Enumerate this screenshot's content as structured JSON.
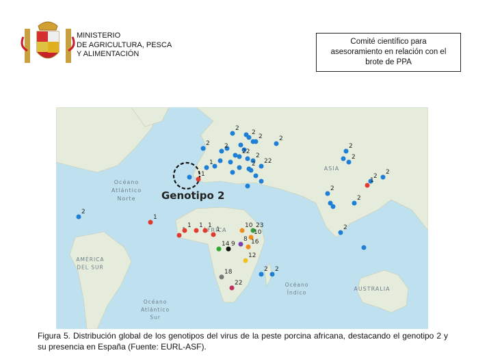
{
  "header": {
    "ministry": [
      "MINISTERIO",
      "DE AGRICULTURA, PESCA",
      "Y ALIMENTACIÓN"
    ],
    "committee": [
      "Comité científico para",
      "asesoramiento en relación con el",
      "brote de PPA"
    ]
  },
  "map": {
    "regions": [
      {
        "lines": [
          "Océano",
          "Atlántico",
          "Norte"
        ]
      },
      {
        "lines": [
          "ASIA"
        ]
      },
      {
        "lines": [
          "ÁFRICA"
        ]
      },
      {
        "lines": [
          "AMÉRICA",
          "DEL SUR"
        ]
      },
      {
        "lines": [
          "Océano",
          "Índico"
        ]
      },
      {
        "lines": [
          "AUSTRALIA"
        ]
      },
      {
        "lines": [
          "Océano",
          "Atlántico",
          "Sur"
        ]
      }
    ],
    "highlight": "Genotipo 2",
    "markers": [
      {
        "label": "2",
        "color": "#1e7fd6"
      },
      {
        "label": "2",
        "color": "#1e7fd6"
      },
      {
        "label": "2",
        "color": "#1e7fd6"
      },
      {
        "label": "2",
        "color": "#1e7fd6"
      },
      {
        "label": "2",
        "color": "#1e7fd6"
      },
      {
        "label": "2",
        "color": "#1e7fd6"
      },
      {
        "label": "22",
        "color": "#1e7fd6"
      },
      {
        "label": "2",
        "color": "#1e7fd6"
      },
      {
        "label": "22",
        "color": "#1e7fd6"
      },
      {
        "label": "2",
        "color": "#1e7fd6"
      },
      {
        "label": "1",
        "color": "#1e7fd6"
      },
      {
        "label": "1",
        "color": "#e03b2e"
      },
      {
        "label": "2",
        "color": "#1e7fd6"
      },
      {
        "label": "2",
        "color": "#1e7fd6"
      },
      {
        "label": "2",
        "color": "#1e7fd6"
      },
      {
        "label": "1",
        "color": "#e03b2e"
      },
      {
        "label": "2",
        "color": "#1e7fd6"
      },
      {
        "label": "2",
        "color": "#1e7fd6"
      },
      {
        "label": "2",
        "color": "#1e7fd6"
      },
      {
        "label": "2",
        "color": "#1e7fd6"
      },
      {
        "label": "2",
        "color": "#1e7fd6"
      },
      {
        "label": "1",
        "color": "#e03b2e"
      },
      {
        "label": "1",
        "color": "#e03b2e"
      },
      {
        "label": "1",
        "color": "#e03b2e"
      },
      {
        "label": "1",
        "color": "#e03b2e"
      },
      {
        "label": "1",
        "color": "#e03b2e"
      },
      {
        "label": "1",
        "color": "#e03b2e"
      },
      {
        "label": "10",
        "color": "#f08c1a"
      },
      {
        "label": "23",
        "color": "#2e9e3e"
      },
      {
        "label": "10",
        "color": "#f08c1a"
      },
      {
        "label": "14",
        "color": "#2ea82e"
      },
      {
        "label": "9",
        "color": "#111111"
      },
      {
        "label": "16",
        "color": "#f08c1a"
      },
      {
        "label": "8",
        "color": "#7a3fb0"
      },
      {
        "label": "12",
        "color": "#f0c020"
      },
      {
        "label": "18",
        "color": "#777777"
      },
      {
        "label": "22",
        "color": "#c03060"
      },
      {
        "label": "2",
        "color": "#1e7fd6"
      },
      {
        "label": "2",
        "color": "#1e7fd6"
      }
    ]
  },
  "caption": "Figura 5. Distribución global de los genotipos del virus de la peste porcina africana, destacando el genotipo 2 y su presencia en España (Fuente: EURL-ASF)."
}
